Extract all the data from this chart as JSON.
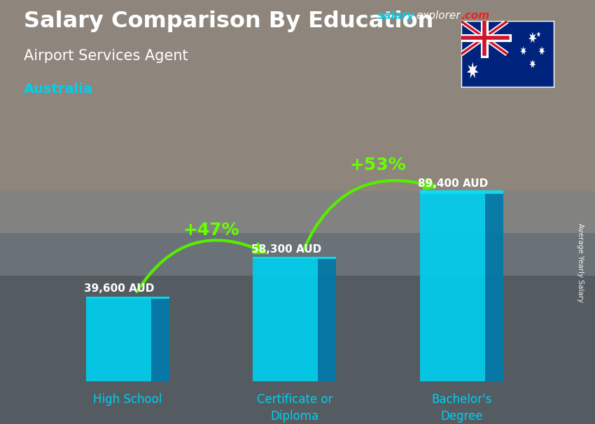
{
  "title_line1": "Salary Comparison By Education",
  "subtitle": "Airport Services Agent",
  "country": "Australia",
  "ylabel": "Average Yearly Salary",
  "categories": [
    "High School",
    "Certificate or\nDiploma",
    "Bachelor's\nDegree"
  ],
  "values": [
    39600,
    58300,
    89400
  ],
  "value_labels": [
    "39,600 AUD",
    "58,300 AUD",
    "89,400 AUD"
  ],
  "pct_labels": [
    "+47%",
    "+53%"
  ],
  "bar_color_face": "#00cfee",
  "bar_color_dark": "#007aaa",
  "bar_color_top": "#00e5ff",
  "background_color": "#7a8a8a",
  "title_color": "#ffffff",
  "subtitle_color": "#ffffff",
  "country_color": "#00cfee",
  "value_label_color": "#ffffff",
  "pct_color": "#66ff00",
  "arrow_color": "#55ee00",
  "watermark_salary_color": "#00cfee",
  "watermark_explorer_color": "#ffffff",
  "watermark_com_color": "#ee2222",
  "bar_width": 0.5,
  "ylim": [
    0,
    105000
  ],
  "x_positions": [
    0,
    1,
    2
  ]
}
